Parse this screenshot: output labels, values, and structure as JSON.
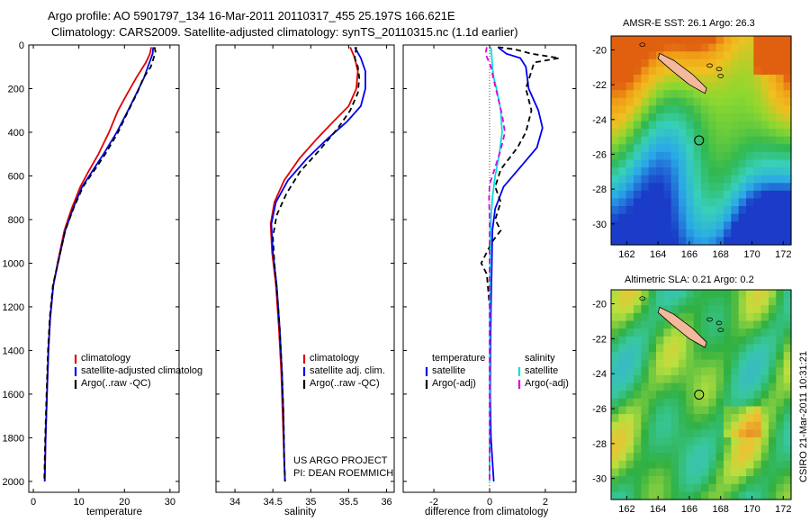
{
  "header": {
    "title_line1": "Argo profile: AO 5901797_134 16-Mar-2011 20110317_455 25.197S 166.621E",
    "title_line2": "Climatology: CARS2009. Satellite-adjusted climatology: synTS_20110315.nc (1.1d earlier)"
  },
  "colors": {
    "red": "#e00000",
    "blue": "#0000ee",
    "black": "#000000",
    "cyan": "#00e0e0",
    "magenta": "#e000e0"
  },
  "chart_data": [
    {
      "type": "line",
      "id": "temperature",
      "xlabel": "temperature",
      "xlim": [
        -1,
        32
      ],
      "ylim": [
        2050,
        0
      ],
      "xticks": [
        0,
        10,
        20,
        30
      ],
      "yticks": [
        0,
        200,
        400,
        600,
        800,
        1000,
        1200,
        1400,
        1600,
        1800,
        2000
      ],
      "series": [
        {
          "name": "climatology",
          "color": "#e00000",
          "style": "solid",
          "points": [
            [
              25.9,
              10
            ],
            [
              25.6,
              40
            ],
            [
              24.7,
              80
            ],
            [
              22.6,
              150
            ],
            [
              20.7,
              220
            ],
            [
              18.6,
              300
            ],
            [
              16.6,
              400
            ],
            [
              14.3,
              500
            ],
            [
              12.1,
              580
            ],
            [
              10.3,
              650
            ],
            [
              8.4,
              750
            ],
            [
              6.8,
              850
            ],
            [
              5.3,
              1000
            ],
            [
              4.4,
              1100
            ],
            [
              3.7,
              1250
            ],
            [
              3.3,
              1400
            ],
            [
              3.0,
              1600
            ],
            [
              2.7,
              1800
            ],
            [
              2.5,
              2000
            ]
          ]
        },
        {
          "name": "satellite-adjusted climatology",
          "color": "#0000ee",
          "style": "solid",
          "points": [
            [
              26.3,
              10
            ],
            [
              26.2,
              40
            ],
            [
              25.5,
              80
            ],
            [
              24.3,
              150
            ],
            [
              22.7,
              220
            ],
            [
              20.8,
              300
            ],
            [
              18.3,
              400
            ],
            [
              15.4,
              500
            ],
            [
              12.9,
              580
            ],
            [
              10.7,
              650
            ],
            [
              8.7,
              750
            ],
            [
              7.0,
              850
            ],
            [
              5.4,
              1000
            ],
            [
              4.4,
              1100
            ],
            [
              3.7,
              1250
            ],
            [
              3.3,
              1400
            ],
            [
              3.0,
              1600
            ],
            [
              2.7,
              1800
            ],
            [
              2.5,
              2000
            ]
          ]
        },
        {
          "name": "Argo(..raw -QC)",
          "color": "#000000",
          "style": "dashed",
          "points": [
            [
              26.6,
              10
            ],
            [
              26.8,
              30
            ],
            [
              26.4,
              60
            ],
            [
              25.8,
              100
            ],
            [
              24.2,
              150
            ],
            [
              22.8,
              220
            ],
            [
              20.9,
              300
            ],
            [
              18.6,
              400
            ],
            [
              15.8,
              500
            ],
            [
              13.2,
              580
            ],
            [
              10.9,
              650
            ],
            [
              8.8,
              750
            ],
            [
              7.0,
              850
            ],
            [
              5.4,
              1000
            ],
            [
              4.3,
              1100
            ],
            [
              3.6,
              1250
            ],
            [
              3.2,
              1400
            ],
            [
              2.9,
              1600
            ],
            [
              2.6,
              1800
            ],
            [
              2.4,
              2000
            ]
          ]
        }
      ],
      "legend": [
        "climatology",
        "satellite-adjusted climatolog",
        "Argo(..raw -QC)"
      ]
    },
    {
      "type": "line",
      "id": "salinity",
      "xlabel": "salinity",
      "xlim": [
        33.75,
        36.1
      ],
      "ylim": [
        2050,
        0
      ],
      "xticks": [
        34,
        34.5,
        35,
        35.5,
        36
      ],
      "series": [
        {
          "name": "climatology",
          "color": "#e00000",
          "style": "solid",
          "points": [
            [
              35.52,
              10
            ],
            [
              35.58,
              60
            ],
            [
              35.62,
              120
            ],
            [
              35.6,
              200
            ],
            [
              35.5,
              280
            ],
            [
              35.3,
              350
            ],
            [
              35.08,
              430
            ],
            [
              34.85,
              520
            ],
            [
              34.65,
              620
            ],
            [
              34.52,
              720
            ],
            [
              34.47,
              820
            ],
            [
              34.49,
              950
            ],
            [
              34.54,
              1100
            ],
            [
              34.58,
              1300
            ],
            [
              34.61,
              1500
            ],
            [
              34.63,
              1700
            ],
            [
              34.65,
              1900
            ],
            [
              34.66,
              2000
            ]
          ]
        },
        {
          "name": "satellite adj. clim.",
          "color": "#0000ee",
          "style": "solid",
          "points": [
            [
              35.58,
              10
            ],
            [
              35.66,
              60
            ],
            [
              35.72,
              120
            ],
            [
              35.72,
              200
            ],
            [
              35.66,
              280
            ],
            [
              35.48,
              350
            ],
            [
              35.22,
              430
            ],
            [
              34.95,
              520
            ],
            [
              34.7,
              620
            ],
            [
              34.54,
              720
            ],
            [
              34.48,
              820
            ],
            [
              34.5,
              950
            ],
            [
              34.55,
              1100
            ],
            [
              34.59,
              1300
            ],
            [
              34.62,
              1500
            ],
            [
              34.64,
              1700
            ],
            [
              34.65,
              1900
            ],
            [
              34.66,
              2000
            ]
          ]
        },
        {
          "name": "Argo(..raw -QC)",
          "color": "#000000",
          "style": "dashed",
          "points": [
            [
              35.6,
              10
            ],
            [
              35.58,
              60
            ],
            [
              35.62,
              100
            ],
            [
              35.64,
              150
            ],
            [
              35.62,
              220
            ],
            [
              35.52,
              300
            ],
            [
              35.36,
              380
            ],
            [
              35.12,
              480
            ],
            [
              34.86,
              580
            ],
            [
              34.68,
              680
            ],
            [
              34.55,
              780
            ],
            [
              34.5,
              880
            ],
            [
              34.52,
              1000
            ],
            [
              34.56,
              1150
            ],
            [
              34.59,
              1300
            ],
            [
              34.62,
              1500
            ],
            [
              34.64,
              1700
            ],
            [
              34.65,
              1900
            ],
            [
              34.66,
              2000
            ]
          ]
        }
      ],
      "legend": [
        "climatology",
        "satellite adj. clim.",
        "Argo(..raw -QC)"
      ]
    },
    {
      "type": "line",
      "id": "difference",
      "xlabel": "difference from climatology",
      "xlim": [
        -3.1,
        3.1
      ],
      "ylim": [
        2050,
        0
      ],
      "xticks": [
        -2,
        0,
        2
      ],
      "series": [
        {
          "name": "temperature satellite",
          "color": "#0000ee",
          "style": "solid",
          "points": [
            [
              0.3,
              10
            ],
            [
              0.6,
              40
            ],
            [
              1.1,
              60
            ],
            [
              1.3,
              100
            ],
            [
              1.4,
              200
            ],
            [
              1.75,
              300
            ],
            [
              1.9,
              380
            ],
            [
              1.7,
              470
            ],
            [
              1.1,
              560
            ],
            [
              0.5,
              650
            ],
            [
              0.2,
              750
            ],
            [
              0.1,
              850
            ],
            [
              0.08,
              1000
            ],
            [
              0.05,
              1200
            ],
            [
              0.03,
              1400
            ],
            [
              0.02,
              1600
            ],
            [
              0.05,
              1800
            ],
            [
              0.15,
              2000
            ]
          ]
        },
        {
          "name": "temperature Argo(-adj)",
          "color": "#000000",
          "style": "dashed",
          "points": [
            [
              0.3,
              10
            ],
            [
              0.9,
              20
            ],
            [
              1.5,
              40
            ],
            [
              2.5,
              60
            ],
            [
              1.6,
              80
            ],
            [
              1.5,
              120
            ],
            [
              1.3,
              200
            ],
            [
              1.5,
              300
            ],
            [
              1.3,
              400
            ],
            [
              1.0,
              470
            ],
            [
              0.4,
              570
            ],
            [
              0.2,
              650
            ],
            [
              0.4,
              720
            ],
            [
              0.2,
              800
            ],
            [
              0.4,
              850
            ],
            [
              0.1,
              900
            ],
            [
              -0.3,
              1000
            ],
            [
              -0.1,
              1050
            ],
            [
              0.0,
              1200
            ],
            [
              0.0,
              1500
            ],
            [
              0.0,
              2000
            ]
          ]
        },
        {
          "name": "salinity satellite",
          "color": "#00e0e0",
          "style": "solid",
          "points": [
            [
              0.05,
              10
            ],
            [
              0.08,
              60
            ],
            [
              0.1,
              100
            ],
            [
              0.15,
              150
            ],
            [
              0.25,
              200
            ],
            [
              0.4,
              300
            ],
            [
              0.45,
              400
            ],
            [
              0.35,
              500
            ],
            [
              0.2,
              600
            ],
            [
              0.1,
              700
            ],
            [
              0.05,
              800
            ],
            [
              0.03,
              1000
            ],
            [
              0.01,
              1200
            ],
            [
              0.0,
              1500
            ],
            [
              0.0,
              2000
            ]
          ]
        },
        {
          "name": "salinity Argo(-adj)",
          "color": "#e000e0",
          "style": "dashed",
          "points": [
            [
              -0.1,
              10
            ],
            [
              -0.15,
              40
            ],
            [
              -0.05,
              70
            ],
            [
              0.05,
              100
            ],
            [
              0.15,
              160
            ],
            [
              0.3,
              240
            ],
            [
              0.45,
              320
            ],
            [
              0.55,
              400
            ],
            [
              0.4,
              480
            ],
            [
              0.2,
              560
            ],
            [
              0.0,
              640
            ],
            [
              -0.02,
              700
            ],
            [
              0.0,
              800
            ],
            [
              0.0,
              1000
            ],
            [
              0.0,
              2000
            ]
          ]
        }
      ],
      "legend_temp_title": "temperature",
      "legend_sal_title": "salinity",
      "legend_temp": [
        "satellite",
        "Argo(-adj)"
      ],
      "legend_sal": [
        "satellite",
        "Argo(-adj)"
      ]
    },
    {
      "type": "heatmap",
      "id": "sst_map",
      "title": "AMSR-E SST: 26.1 Argo: 26.3",
      "xlim": [
        161,
        172.5
      ],
      "ylim": [
        -31.2,
        -19.2
      ],
      "xticks": [
        162,
        164,
        166,
        168,
        170,
        172
      ],
      "yticks": [
        -20,
        -22,
        -24,
        -26,
        -28,
        -30
      ]
    },
    {
      "type": "heatmap",
      "id": "sla_map",
      "title": "Altimetric SLA: 0.21 Argo: 0.2",
      "xlim": [
        161,
        172.5
      ],
      "ylim": [
        -31.2,
        -19.2
      ],
      "xticks": [
        162,
        164,
        166,
        168,
        170,
        172
      ],
      "yticks": [
        -20,
        -22,
        -24,
        -26,
        -28,
        -30
      ]
    }
  ],
  "annotations": {
    "project_line1": "US ARGO PROJECT",
    "project_line2": "PI: DEAN ROEMMICH",
    "stamp": "CSIRO 21-Mar-2011 10:31:21"
  }
}
